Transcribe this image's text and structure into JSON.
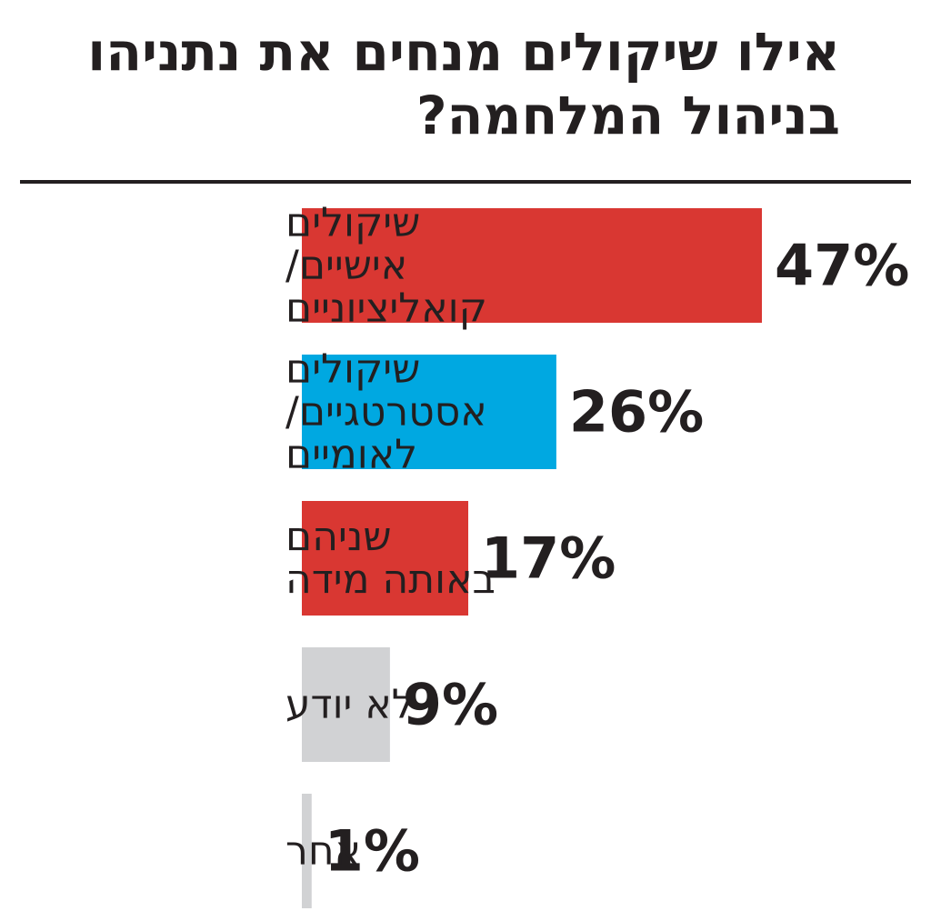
{
  "chart_data": {
    "type": "bar",
    "orientation": "horizontal",
    "title": "אילו שיקולים מנחים את נתניהו בניהול המלחמה?",
    "categories": [
      [
        "שיקולים",
        "אישיים/",
        "קואליציוניים"
      ],
      [
        "שיקולים",
        "אסטרטגיים/",
        "לאומיים"
      ],
      [
        "שניהם",
        "באותה מידה"
      ],
      [
        "לא יודע"
      ],
      [
        "אחר"
      ]
    ],
    "values": [
      47,
      26,
      17,
      9,
      1
    ],
    "value_labels": [
      "47%",
      "26%",
      "17%",
      "9%",
      "1%"
    ],
    "bar_colors": [
      "#d93732",
      "#00a8e1",
      "#d93732",
      "#d1d2d4",
      "#d1d2d4"
    ],
    "unit": "%",
    "xlim": [
      0,
      47
    ],
    "grid": false,
    "legend": "none"
  }
}
